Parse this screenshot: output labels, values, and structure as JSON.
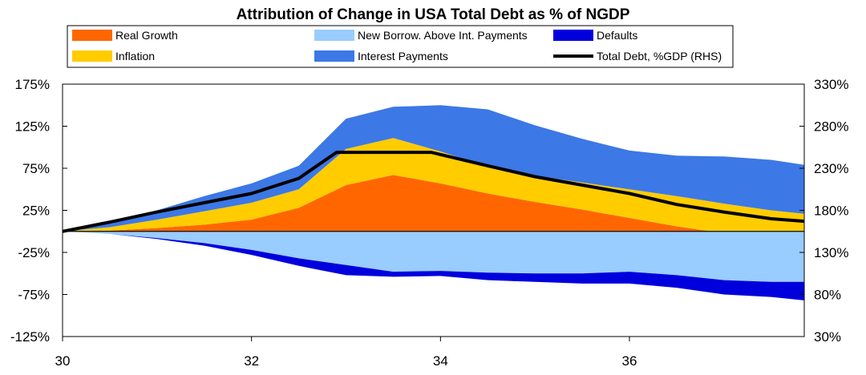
{
  "chart_data": {
    "type": "area",
    "title": "Attribution of Change in USA Total Debt as % of NGDP",
    "x_tick_labels": [
      "30",
      "32",
      "34",
      "36"
    ],
    "x_ticks": [
      30,
      32,
      34,
      36
    ],
    "xlim": [
      30,
      37.85
    ],
    "left_axis": {
      "ylim": [
        -125,
        175
      ],
      "ticks": [
        175,
        125,
        75,
        25,
        -25,
        -75,
        -125
      ],
      "tick_labels": [
        "175%",
        "125%",
        "75%",
        "25%",
        "-25%",
        "-75%",
        "-125%"
      ]
    },
    "right_axis": {
      "ylim": [
        30,
        330
      ],
      "ticks": [
        330,
        280,
        230,
        180,
        130,
        80,
        30
      ],
      "tick_labels": [
        "330%",
        "280%",
        "230%",
        "180%",
        "130%",
        "80%",
        "30%"
      ]
    },
    "x": [
      30,
      30.5,
      31,
      31.5,
      32,
      32.5,
      33,
      33.5,
      34,
      34.5,
      35,
      35.5,
      36,
      36.5,
      37,
      37.5,
      37.85
    ],
    "stacks_positive": [
      {
        "name": "Real Growth",
        "color": "#FF6600",
        "values": [
          0,
          1,
          4,
          8,
          14,
          28,
          55,
          67,
          57,
          45,
          35,
          26,
          16,
          6,
          -2,
          -8,
          -12
        ]
      },
      {
        "name": "Inflation",
        "color": "#FFCC00",
        "values": [
          0,
          4,
          10,
          16,
          20,
          22,
          43,
          44,
          38,
          32,
          31,
          32,
          34,
          36,
          35,
          33,
          33
        ]
      },
      {
        "name": "Interest Payments",
        "color": "#3C78E6",
        "values": [
          0,
          5,
          11,
          18,
          23,
          28,
          36,
          37,
          55,
          68,
          60,
          52,
          46,
          48,
          56,
          60,
          58
        ]
      }
    ],
    "stacks_negative": [
      {
        "name": "New Borrow. Above Int. Payments",
        "color": "#99CCFF",
        "values": [
          0,
          -3,
          -8,
          -14,
          -22,
          -32,
          -40,
          -48,
          -47,
          -49,
          -50,
          -50,
          -48,
          -52,
          -58,
          -60,
          -60
        ]
      },
      {
        "name": "Defaults",
        "color": "#0000DD",
        "values": [
          0,
          0,
          -1,
          -3,
          -6,
          -9,
          -12,
          -6,
          -6,
          -9,
          -10,
          -12,
          -14,
          -15,
          -17,
          -18,
          -22
        ]
      }
    ],
    "line": {
      "name": "Total Debt, %GDP (RHS)",
      "color": "#000000",
      "axis": "right",
      "x": [
        30,
        30.5,
        31,
        31.5,
        32,
        32.5,
        32.9,
        33.5,
        33.9,
        34.5,
        35,
        35.5,
        36,
        36.5,
        37,
        37.5,
        37.85
      ],
      "values": [
        155,
        166,
        178,
        189,
        200,
        218,
        249,
        249,
        249,
        233,
        220,
        210,
        200,
        187,
        178,
        170,
        167
      ]
    },
    "legend": {
      "placement": "top",
      "entries": [
        {
          "label": "Real Growth",
          "color": "#FF6600",
          "kind": "patch"
        },
        {
          "label": "New Borrow. Above Int. Payments",
          "color": "#99CCFF",
          "kind": "patch"
        },
        {
          "label": "Defaults",
          "color": "#0000DD",
          "kind": "patch"
        },
        {
          "label": "Inflation",
          "color": "#FFCC00",
          "kind": "patch"
        },
        {
          "label": "Interest Payments",
          "color": "#3C78E6",
          "kind": "patch"
        },
        {
          "label": "Total Debt, %GDP (RHS)",
          "color": "#000000",
          "kind": "line"
        }
      ]
    },
    "grid": false
  }
}
